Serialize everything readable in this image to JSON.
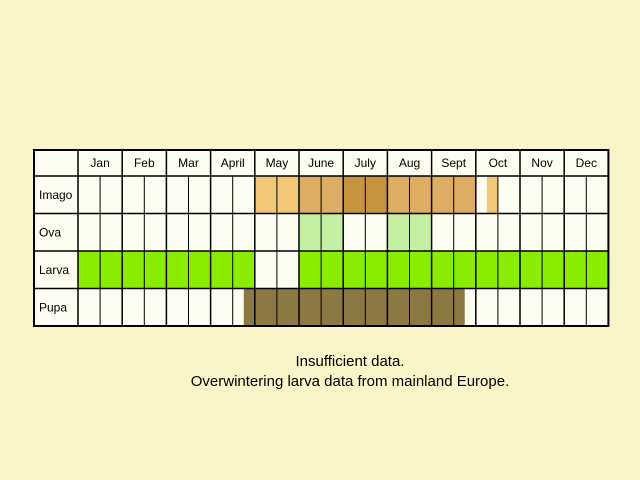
{
  "chart_data": {
    "type": "table",
    "title": "",
    "months": [
      "Jan",
      "Feb",
      "Mar",
      "April",
      "May",
      "June",
      "July",
      "Aug",
      "Sept",
      "Oct",
      "Nov",
      "Dec"
    ],
    "stages": [
      "Imago",
      "Ova",
      "Larva",
      "Pupa"
    ],
    "subdivisions_per_month": 2,
    "grid": true,
    "colors": {
      "background": "#faf5c9",
      "cell": "#fefdf1",
      "grid_line": "#000000",
      "imago_light": "#f2c878",
      "imago_mid": "#ddad63",
      "imago_dark": "#c6943e",
      "ova": "#c5f0a4",
      "larva": "#8aec00",
      "pupa": "#8b7842"
    },
    "bands": [
      {
        "stage": "Imago",
        "segments": [
          {
            "start_half": 8,
            "end_half": 10,
            "color": "#f2c878"
          },
          {
            "start_half": 10,
            "end_half": 12,
            "color": "#ddad63"
          },
          {
            "start_half": 12,
            "end_half": 14,
            "color": "#c6943e"
          },
          {
            "start_half": 14,
            "end_half": 16,
            "color": "#ddad63"
          },
          {
            "start_half": 16,
            "end_half": 18,
            "color": "#ddad63"
          },
          {
            "start_half": 18.5,
            "end_half": 19,
            "color": "#f2c878"
          }
        ]
      },
      {
        "stage": "Ova",
        "segments": [
          {
            "start_half": 10,
            "end_half": 12,
            "color": "#c5f0a4"
          },
          {
            "start_half": 14,
            "end_half": 16,
            "color": "#c5f0a4"
          }
        ]
      },
      {
        "stage": "Larva",
        "segments": [
          {
            "start_half": 0,
            "end_half": 8,
            "color": "#8aec00"
          },
          {
            "start_half": 10,
            "end_half": 24,
            "color": "#8aec00"
          }
        ]
      },
      {
        "stage": "Pupa",
        "segments": [
          {
            "start_half": 7.5,
            "end_half": 17.5,
            "color": "#8b7842"
          }
        ]
      }
    ],
    "notes": [
      "Insufficient data.",
      "Overwintering larva data from mainland Europe."
    ]
  }
}
